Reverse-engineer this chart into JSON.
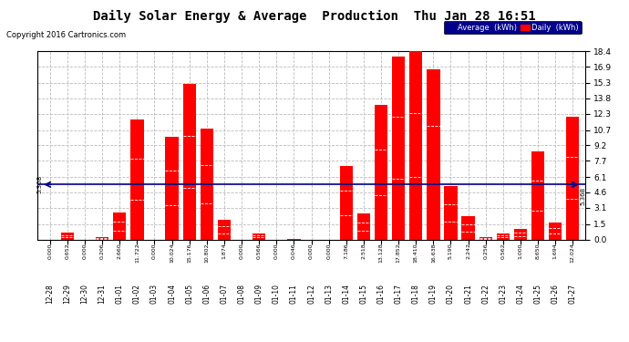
{
  "title": "Daily Solar Energy & Average  Production  Thu Jan 28 16:51",
  "copyright": "Copyright 2016 Cartronics.com",
  "categories": [
    "12-28",
    "12-29",
    "12-30",
    "12-31",
    "01-01",
    "01-02",
    "01-03",
    "01-04",
    "01-05",
    "01-06",
    "01-07",
    "01-08",
    "01-09",
    "01-10",
    "01-11",
    "01-12",
    "01-13",
    "01-14",
    "01-15",
    "01-16",
    "01-17",
    "01-18",
    "01-19",
    "01-20",
    "01-21",
    "01-22",
    "01-23",
    "01-24",
    "01-25",
    "01-26",
    "01-27"
  ],
  "values": [
    0.0,
    0.652,
    0.0,
    0.206,
    2.66,
    11.722,
    0.0,
    10.024,
    15.176,
    10.802,
    1.874,
    0.0,
    0.566,
    0.0,
    0.046,
    0.0,
    0.0,
    7.186,
    2.518,
    13.128,
    17.852,
    18.41,
    16.638,
    5.19,
    2.242,
    0.256,
    0.562,
    1.0,
    8.65,
    1.694,
    12.024
  ],
  "average": 5.368,
  "bar_color": "#ff0000",
  "average_color": "#00008b",
  "background_color": "#ffffff",
  "grid_color": "#bbbbbb",
  "ylim_max": 18.4,
  "yticks": [
    0.0,
    1.5,
    3.1,
    4.6,
    6.1,
    7.7,
    9.2,
    10.7,
    12.3,
    13.8,
    15.3,
    16.9,
    18.4
  ],
  "title_fontsize": 11,
  "legend_avg_label": "Average  (kWh)",
  "legend_daily_label": "Daily  (kWh)"
}
